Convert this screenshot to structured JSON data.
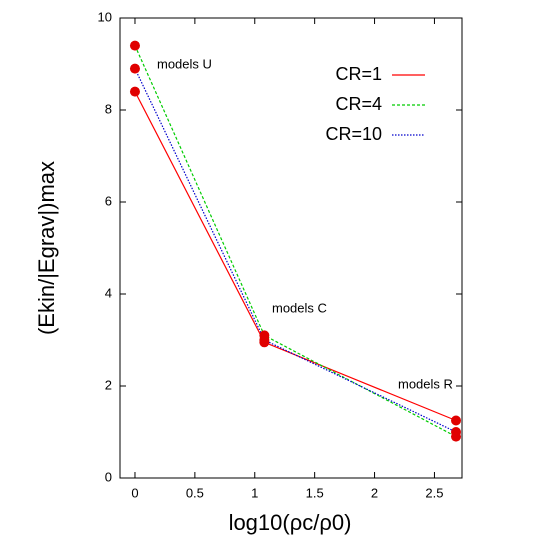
{
  "chart_data": {
    "type": "line",
    "xlabel": "log10(ρc/ρ0)",
    "ylabel": "(Ekin/|Egrav|)max",
    "x": [
      0,
      1.08,
      2.68
    ],
    "series": [
      {
        "name": "CR=1",
        "color": "#ff0000",
        "linestyle": "solid",
        "values": [
          8.4,
          2.95,
          1.25
        ]
      },
      {
        "name": "CR=4",
        "color": "#00cc00",
        "linestyle": "dashed",
        "values": [
          9.4,
          3.1,
          0.9
        ]
      },
      {
        "name": "CR=10",
        "color": "#0000cc",
        "linestyle": "dotted",
        "values": [
          8.9,
          3.0,
          1.0
        ]
      }
    ],
    "marker_color": "#e00000",
    "annotations": [
      "models U",
      "models C",
      "models R"
    ],
    "xlim": [
      -0.125,
      2.73
    ],
    "ylim": [
      0,
      10
    ],
    "xticks": [
      0,
      0.5,
      1,
      1.5,
      2,
      2.5
    ],
    "yticks": [
      0,
      2,
      4,
      6,
      8,
      10
    ],
    "legend": "upper right"
  }
}
